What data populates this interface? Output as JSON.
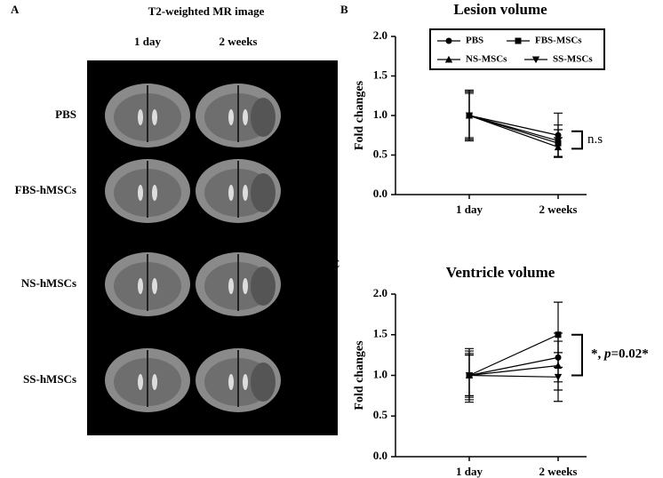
{
  "figure": {
    "panel": "A",
    "title": "T2-weighted MR image",
    "columns": [
      "1 day",
      "2 weeks"
    ],
    "rows": [
      "PBS",
      "FBS-hMSCs",
      "NS-hMSCs",
      "SS-hMSCs"
    ]
  },
  "chart_data": [
    {
      "type": "line",
      "panel": "B",
      "title": "Lesion volume",
      "y_label": "Fold changes",
      "categories": [
        "1 day",
        "2 weeks"
      ],
      "ylim": [
        0,
        2
      ],
      "yticks": [
        {
          "value": 0,
          "label": "0.0"
        },
        {
          "value": 0.5,
          "label": "0.5"
        },
        {
          "value": 1,
          "label": "1.0"
        },
        {
          "value": 1.5,
          "label": "1.5"
        },
        {
          "value": 2,
          "label": "2.0"
        }
      ],
      "legend": true,
      "series": [
        {
          "name": "PBS",
          "color": "#000000",
          "marker": "circle",
          "values": [
            1,
            0.75
          ],
          "errors": [
            0.3,
            0.28
          ]
        },
        {
          "name": "FBS-MSCs",
          "color": "#000000",
          "marker": "square",
          "values": [
            1,
            0.65
          ],
          "errors": [
            0.32,
            0.17
          ]
        },
        {
          "name": "NS-MSCs",
          "color": "#000000",
          "marker": "triangle",
          "values": [
            1,
            0.6
          ],
          "errors": [
            0.28,
            0.12
          ]
        },
        {
          "name": "SS-MSCs",
          "color": "#000000",
          "marker": "triangle-down",
          "values": [
            1,
            0.68
          ],
          "errors": [
            0.3,
            0.2
          ]
        }
      ],
      "annotation": "n.s",
      "bracket": [
        0.8,
        0.58
      ]
    },
    {
      "type": "line",
      "panel": "C",
      "title": "Ventricle volume",
      "y_label": "Fold changes",
      "categories": [
        "1 day",
        "2 weeks"
      ],
      "ylim": [
        0,
        2
      ],
      "yticks": [
        {
          "value": 0,
          "label": "0.0"
        },
        {
          "value": 0.5,
          "label": "0.5"
        },
        {
          "value": 1,
          "label": "1.0"
        },
        {
          "value": 1.5,
          "label": "1.5"
        },
        {
          "value": 2,
          "label": "2.0"
        }
      ],
      "legend": false,
      "series": [
        {
          "color": "#000000",
          "marker": "circle",
          "values": [
            1,
            1.22
          ],
          "errors": [
            0.3,
            0.3
          ]
        },
        {
          "color": "#000000",
          "marker": "square",
          "values": [
            1,
            1.5
          ],
          "errors": [
            0.33,
            0.4
          ]
        },
        {
          "color": "#000000",
          "marker": "triangle",
          "values": [
            1,
            1.12
          ],
          "errors": [
            0.25,
            0.3
          ]
        },
        {
          "color": "#000000",
          "marker": "triangle-down",
          "values": [
            1,
            0.98
          ],
          "errors": [
            0.27,
            0.3
          ]
        }
      ],
      "annotation_parts": [
        "*, ",
        "p",
        "=0.02*"
      ],
      "bracket": [
        1.5,
        1.0
      ]
    }
  ]
}
